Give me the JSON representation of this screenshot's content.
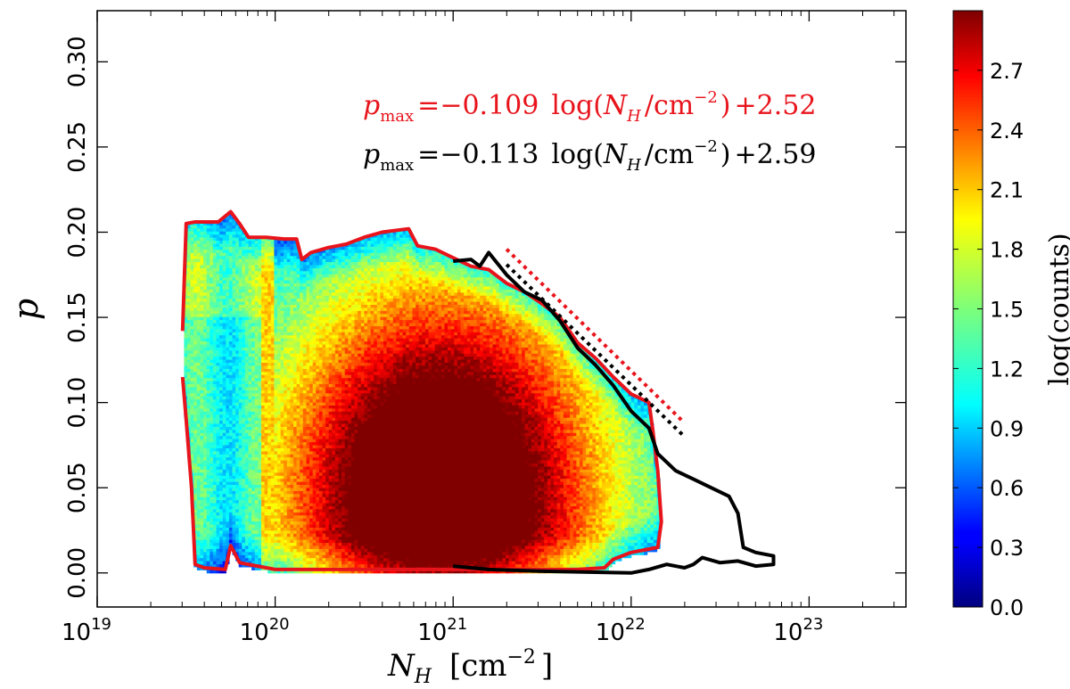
{
  "chart_data": {
    "type": "heatmap",
    "xlabel": "N_H  [cm^-2]",
    "xlabel_main": "N",
    "xlabel_sub": "H",
    "xlabel_unit": "[cm",
    "xlabel_unit_exp": "−2",
    "xlabel_unit_close": "]",
    "ylabel": "p",
    "x_scale": "log",
    "xlim": [
      1e+19,
      3.5e+23
    ],
    "ylim": [
      -0.02,
      0.33
    ],
    "x_ticks": [
      {
        "value": 1e+19,
        "base": "10",
        "exp": "19"
      },
      {
        "value": 1e+20,
        "base": "10",
        "exp": "20"
      },
      {
        "value": 1e+21,
        "base": "10",
        "exp": "21"
      },
      {
        "value": 1e+22,
        "base": "10",
        "exp": "22"
      },
      {
        "value": 1e+23,
        "base": "10",
        "exp": "23"
      }
    ],
    "y_ticks": [
      {
        "value": 0.0,
        "label": "0.00"
      },
      {
        "value": 0.05,
        "label": "0.05"
      },
      {
        "value": 0.1,
        "label": "0.10"
      },
      {
        "value": 0.15,
        "label": "0.15"
      },
      {
        "value": 0.2,
        "label": "0.20"
      },
      {
        "value": 0.25,
        "label": "0.25"
      },
      {
        "value": 0.3,
        "label": "0.30"
      }
    ],
    "colorbar": {
      "label": "log(counts)",
      "range": [
        0.0,
        3.0
      ],
      "ticks": [
        "0.0",
        "0.3",
        "0.6",
        "0.9",
        "1.2",
        "1.5",
        "1.8",
        "2.1",
        "2.4",
        "2.7"
      ],
      "colormap": "jet"
    },
    "equations": [
      {
        "color": "#e8141c",
        "lhs": "p",
        "sub": "max",
        "slope": "−0.109",
        "log_open": "log(",
        "var": "N",
        "var_sub": "H",
        "unit": "/cm",
        "unit_exp": "−2",
        "close": ")",
        "intercept": "+2.52"
      },
      {
        "color": "#000000",
        "lhs": "p",
        "sub": "max",
        "slope": "−0.113",
        "log_open": "log(",
        "var": "N",
        "var_sub": "H",
        "unit": "/cm",
        "unit_exp": "−2",
        "close": ")",
        "intercept": "+2.59"
      }
    ],
    "density_peak": {
      "log_NH": 20.93,
      "p": 0.045,
      "log_counts": 3.0
    },
    "series": [
      {
        "color": "#e8141c",
        "style": "solid",
        "points": [
          [
            19.48,
            0.142
          ],
          [
            19.5,
            0.205
          ],
          [
            19.55,
            0.206
          ],
          [
            19.6,
            0.206
          ],
          [
            19.68,
            0.206
          ],
          [
            19.75,
            0.212
          ],
          [
            19.8,
            0.205
          ],
          [
            19.85,
            0.197
          ],
          [
            19.9,
            0.197
          ],
          [
            19.95,
            0.197
          ],
          [
            20.05,
            0.196
          ],
          [
            20.12,
            0.196
          ],
          [
            20.15,
            0.184
          ],
          [
            20.2,
            0.188
          ],
          [
            20.3,
            0.191
          ],
          [
            20.4,
            0.193
          ],
          [
            20.5,
            0.197
          ],
          [
            20.6,
            0.2
          ],
          [
            20.75,
            0.202
          ],
          [
            20.8,
            0.192
          ],
          [
            20.9,
            0.19
          ],
          [
            21.0,
            0.185
          ],
          [
            21.1,
            0.18
          ],
          [
            21.2,
            0.178
          ],
          [
            21.3,
            0.17
          ],
          [
            21.4,
            0.165
          ],
          [
            21.5,
            0.158
          ],
          [
            21.6,
            0.15
          ],
          [
            21.7,
            0.135
          ],
          [
            21.8,
            0.126
          ],
          [
            21.9,
            0.115
          ],
          [
            22.0,
            0.105
          ],
          [
            22.1,
            0.1
          ],
          [
            22.12,
            0.085
          ],
          [
            22.15,
            0.06
          ],
          [
            22.17,
            0.03
          ],
          [
            22.15,
            0.015
          ],
          [
            22.0,
            0.012
          ],
          [
            21.9,
            0.008
          ],
          [
            21.85,
            0.003
          ],
          [
            21.7,
            0.002
          ],
          [
            21.5,
            0.002
          ],
          [
            21.0,
            0.002
          ],
          [
            20.5,
            0.002
          ],
          [
            20.0,
            0.002
          ],
          [
            19.9,
            0.004
          ],
          [
            19.8,
            0.006
          ],
          [
            19.75,
            0.016
          ],
          [
            19.72,
            0.002
          ],
          [
            19.6,
            0.003
          ],
          [
            19.55,
            0.005
          ],
          [
            19.53,
            0.05
          ],
          [
            19.5,
            0.09
          ],
          [
            19.48,
            0.115
          ]
        ]
      },
      {
        "color": "#000000",
        "style": "solid",
        "points": [
          [
            21.0,
            0.183
          ],
          [
            21.1,
            0.184
          ],
          [
            21.15,
            0.18
          ],
          [
            21.2,
            0.188
          ],
          [
            21.3,
            0.175
          ],
          [
            21.4,
            0.165
          ],
          [
            21.5,
            0.16
          ],
          [
            21.6,
            0.148
          ],
          [
            21.7,
            0.132
          ],
          [
            21.8,
            0.122
          ],
          [
            21.9,
            0.11
          ],
          [
            22.0,
            0.095
          ],
          [
            22.1,
            0.085
          ],
          [
            22.15,
            0.07
          ],
          [
            22.25,
            0.06
          ],
          [
            22.35,
            0.055
          ],
          [
            22.45,
            0.05
          ],
          [
            22.55,
            0.045
          ],
          [
            22.6,
            0.035
          ],
          [
            22.63,
            0.015
          ],
          [
            22.7,
            0.012
          ],
          [
            22.8,
            0.01
          ],
          [
            22.8,
            0.005
          ],
          [
            22.7,
            0.004
          ],
          [
            22.6,
            0.007
          ],
          [
            22.5,
            0.006
          ],
          [
            22.4,
            0.009
          ],
          [
            22.35,
            0.005
          ],
          [
            22.3,
            0.003
          ],
          [
            22.2,
            0.005
          ],
          [
            22.1,
            0.002
          ],
          [
            22.0,
            0.0
          ],
          [
            21.5,
            0.001
          ],
          [
            21.2,
            0.002
          ],
          [
            21.0,
            0.004
          ]
        ]
      },
      {
        "color": "#e8141c",
        "style": "dotted",
        "points": [
          [
            21.3,
            0.19
          ],
          [
            22.3,
            0.088
          ]
        ]
      },
      {
        "color": "#000000",
        "style": "dotted",
        "points": [
          [
            21.3,
            0.181
          ],
          [
            22.3,
            0.08
          ]
        ]
      }
    ]
  }
}
